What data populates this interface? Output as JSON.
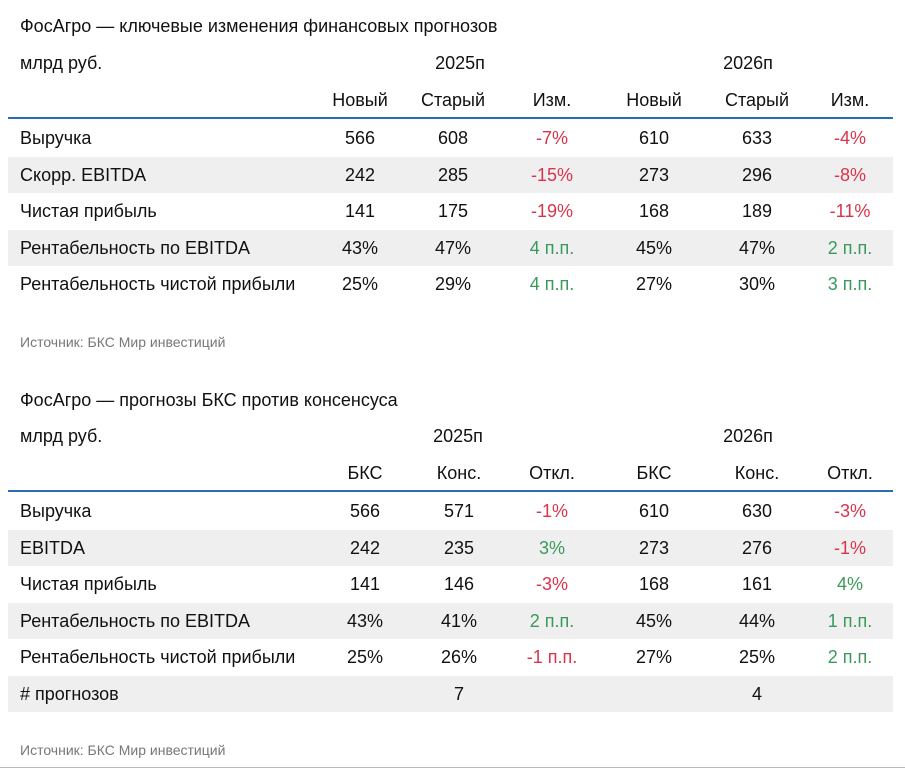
{
  "table1": {
    "title": "ФосАгро — ключевые изменения финансовых прогнозов",
    "unit": "млрд руб.",
    "year1": "2025п",
    "year2": "2026п",
    "headers": [
      "Новый",
      "Старый",
      "Изм.",
      "Новый",
      "Старый",
      "Изм."
    ],
    "rows": [
      {
        "label": "Выручка",
        "values": [
          "566",
          "608",
          "-7%",
          "610",
          "633",
          "-4%"
        ]
      },
      {
        "label": "Скорр. EBITDA",
        "values": [
          "242",
          "285",
          "-15%",
          "273",
          "296",
          "-8%"
        ]
      },
      {
        "label": "Чистая прибыль",
        "values": [
          "141",
          "175",
          "-19%",
          "168",
          "189",
          "-11%"
        ]
      },
      {
        "label": "Рентабельность по EBITDA",
        "values": [
          "43%",
          "47%",
          "4 п.п.",
          "45%",
          "47%",
          "2 п.п."
        ]
      },
      {
        "label": "Рентабельность чистой прибыли",
        "values": [
          "25%",
          "29%",
          "4 п.п.",
          "27%",
          "30%",
          "3 п.п."
        ]
      }
    ],
    "source": "Источник: БКС Мир инвестиций"
  },
  "table2": {
    "title": "ФосАгро — прогнозы БКС против консенсуса",
    "unit": "млрд руб.",
    "year1": "2025п",
    "year2": "2026п",
    "headers": [
      "БКС",
      "Конс.",
      "Откл.",
      "БКС",
      "Конс.",
      "Откл."
    ],
    "rows": [
      {
        "label": "Выручка",
        "values": [
          "566",
          "571",
          "-1%",
          "610",
          "630",
          "-3%"
        ]
      },
      {
        "label": "EBITDA",
        "values": [
          "242",
          "235",
          "3%",
          "273",
          "276",
          "-1%"
        ]
      },
      {
        "label": "Чистая прибыль",
        "values": [
          "141",
          "146",
          "-3%",
          "168",
          "161",
          "4%"
        ]
      },
      {
        "label": "Рентабельность по EBITDA",
        "values": [
          "43%",
          "41%",
          "2 п.п.",
          "45%",
          "44%",
          "1 п.п."
        ]
      },
      {
        "label": "Рентабельность чистой прибыли",
        "values": [
          "25%",
          "26%",
          "-1 п.п.",
          "27%",
          "25%",
          "2 п.п."
        ]
      },
      {
        "label": "# прогнозов",
        "values": [
          "",
          "7",
          "",
          "",
          "4",
          ""
        ]
      }
    ],
    "source": "Источник: БКС Мир инвестиций"
  },
  "colors": {
    "rule": "#2a6db5",
    "negative": "#d9344b",
    "positive": "#3a9a5b",
    "shade": "#efefef"
  }
}
